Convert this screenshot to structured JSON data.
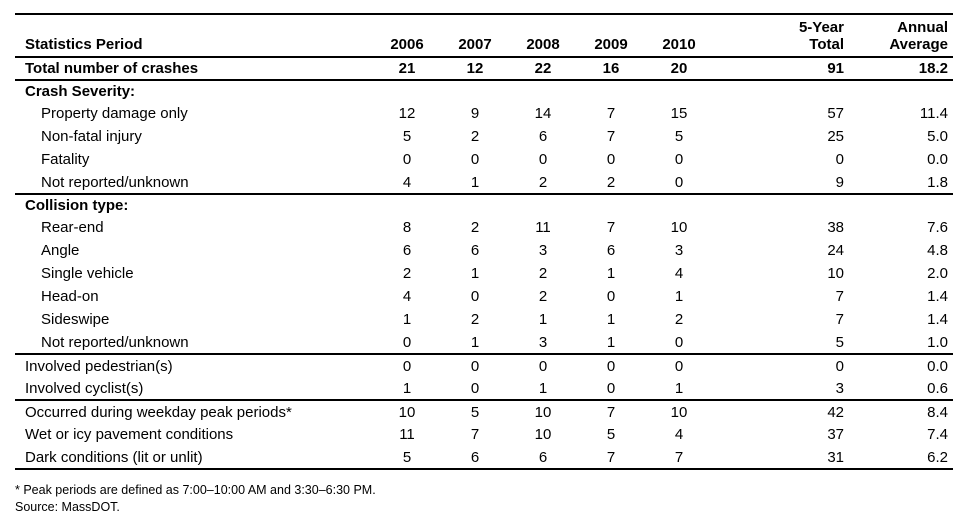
{
  "table": {
    "header": {
      "label": "Statistics Period",
      "year_columns": [
        "2006",
        "2007",
        "2008",
        "2009",
        "2010"
      ],
      "total_column": "5-Year\nTotal",
      "average_column": "Annual\nAverage"
    },
    "rows": [
      {
        "label": "Total number of crashes",
        "style": "total",
        "rule_below": true,
        "values": [
          "21",
          "12",
          "22",
          "16",
          "20",
          "91",
          "18.2"
        ]
      },
      {
        "label": "Crash Severity:",
        "style": "section",
        "rule_below": false,
        "values": []
      },
      {
        "label": "Property damage only",
        "style": "indent",
        "rule_below": false,
        "values": [
          "12",
          "9",
          "14",
          "7",
          "15",
          "57",
          "11.4"
        ]
      },
      {
        "label": "Non-fatal injury",
        "style": "indent",
        "rule_below": false,
        "values": [
          "5",
          "2",
          "6",
          "7",
          "5",
          "25",
          "5.0"
        ]
      },
      {
        "label": "Fatality",
        "style": "indent",
        "rule_below": false,
        "values": [
          "0",
          "0",
          "0",
          "0",
          "0",
          "0",
          "0.0"
        ]
      },
      {
        "label": "Not reported/unknown",
        "style": "indent",
        "rule_below": true,
        "values": [
          "4",
          "1",
          "2",
          "2",
          "0",
          "9",
          "1.8"
        ]
      },
      {
        "label": "Collision type:",
        "style": "section",
        "rule_below": false,
        "values": []
      },
      {
        "label": "Rear-end",
        "style": "indent",
        "rule_below": false,
        "values": [
          "8",
          "2",
          "11",
          "7",
          "10",
          "38",
          "7.6"
        ]
      },
      {
        "label": "Angle",
        "style": "indent",
        "rule_below": false,
        "values": [
          "6",
          "6",
          "3",
          "6",
          "3",
          "24",
          "4.8"
        ]
      },
      {
        "label": "Single vehicle",
        "style": "indent",
        "rule_below": false,
        "values": [
          "2",
          "1",
          "2",
          "1",
          "4",
          "10",
          "2.0"
        ]
      },
      {
        "label": "Head-on",
        "style": "indent",
        "rule_below": false,
        "values": [
          "4",
          "0",
          "2",
          "0",
          "1",
          "7",
          "1.4"
        ]
      },
      {
        "label": "Sideswipe",
        "style": "indent",
        "rule_below": false,
        "values": [
          "1",
          "2",
          "1",
          "1",
          "2",
          "7",
          "1.4"
        ]
      },
      {
        "label": "Not reported/unknown",
        "style": "indent",
        "rule_below": true,
        "values": [
          "0",
          "1",
          "3",
          "1",
          "0",
          "5",
          "1.0"
        ]
      },
      {
        "label": "Involved pedestrian(s)",
        "style": "plain",
        "rule_below": false,
        "values": [
          "0",
          "0",
          "0",
          "0",
          "0",
          "0",
          "0.0"
        ]
      },
      {
        "label": "Involved cyclist(s)",
        "style": "plain",
        "rule_below": true,
        "values": [
          "1",
          "0",
          "1",
          "0",
          "1",
          "3",
          "0.6"
        ]
      },
      {
        "label": "Occurred during weekday peak periods*",
        "style": "plain",
        "rule_below": false,
        "values": [
          "10",
          "5",
          "10",
          "7",
          "10",
          "42",
          "8.4"
        ]
      },
      {
        "label": "Wet or icy pavement conditions",
        "style": "plain",
        "rule_below": false,
        "values": [
          "11",
          "7",
          "10",
          "5",
          "4",
          "37",
          "7.4"
        ]
      },
      {
        "label": "Dark conditions (lit or unlit)",
        "style": "plain",
        "rule_below": true,
        "values": [
          "5",
          "6",
          "6",
          "7",
          "7",
          "31",
          "6.2"
        ]
      }
    ]
  },
  "footnotes": [
    "* Peak periods are defined as 7:00–10:00 AM and 3:30–6:30 PM.",
    "Source: MassDOT."
  ],
  "colors": {
    "text": "#000000",
    "rule": "#000000",
    "background": "#ffffff"
  }
}
